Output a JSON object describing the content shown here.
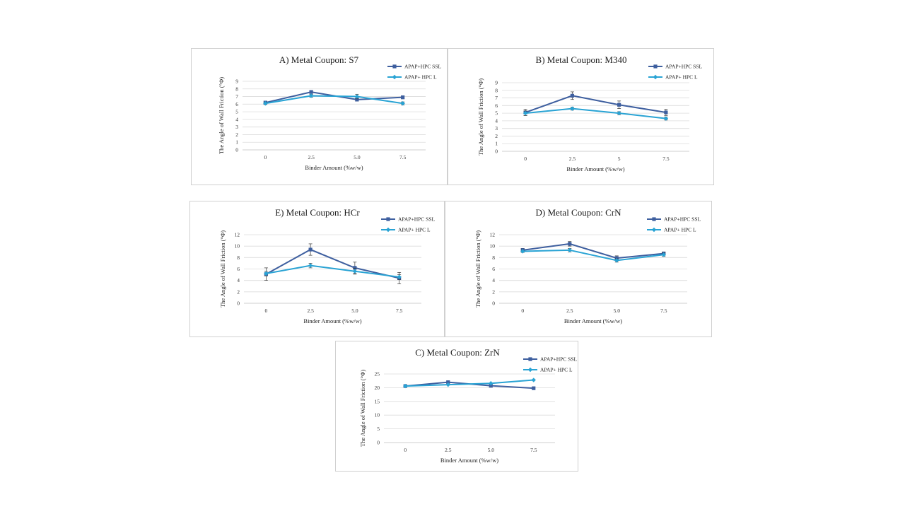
{
  "legend_labels": [
    "APAP+HPC SSL",
    "APAP+ HPC L"
  ],
  "series_colors": [
    "#3e5f9f",
    "#29a3d4"
  ],
  "chart_data": [
    {
      "type": "line",
      "title": "A) Metal Coupon:  S7",
      "xlabel": "Binder Amount (%w/w)",
      "ylabel": "The Angle of Wall Friction (°Φ)",
      "categories": [
        "0",
        "2.5",
        "5.0",
        "7.5"
      ],
      "ylim": [
        0,
        9
      ],
      "yticks": [
        "0",
        "1",
        "2",
        "3",
        "4",
        "5",
        "6",
        "7",
        "8",
        "9"
      ],
      "grid": true,
      "legend_position": "top-right",
      "series": [
        {
          "name": "APAP+HPC SSL",
          "values": [
            6.2,
            7.6,
            6.6,
            6.9
          ],
          "errors": [
            0.2,
            0.2,
            0.2,
            0.2
          ]
        },
        {
          "name": "APAP+ HPC L",
          "values": [
            6.1,
            7.1,
            7.0,
            6.1
          ],
          "errors": [
            0.15,
            0.2,
            0.3,
            0.2
          ]
        }
      ]
    },
    {
      "type": "line",
      "title": "B) Metal Coupon:  M340",
      "xlabel": "Binder Amount (%w/w)",
      "ylabel": "The Angle of Wall Friction (°Φ)",
      "categories": [
        "0",
        "2.5",
        "5",
        "7.5"
      ],
      "ylim": [
        0,
        9
      ],
      "yticks": [
        "0",
        "1",
        "2",
        "3",
        "4",
        "5",
        "6",
        "7",
        "8",
        "9"
      ],
      "grid": true,
      "legend_position": "top-right",
      "series": [
        {
          "name": "APAP+HPC SSL",
          "values": [
            5.1,
            7.3,
            6.1,
            5.1
          ],
          "errors": [
            0.4,
            0.5,
            0.5,
            0.4
          ]
        },
        {
          "name": "APAP+ HPC L",
          "values": [
            5.0,
            5.6,
            5.0,
            4.3
          ],
          "errors": [
            0.3,
            0.2,
            0.2,
            0.2
          ]
        }
      ]
    },
    {
      "type": "line",
      "title": "E) Metal Coupon:  HCr",
      "xlabel": "Binder Amount (%w/w)",
      "ylabel": "The Angle of Wall Friction (°Φ)",
      "categories": [
        "0",
        "2.5",
        "5.0",
        "7.5"
      ],
      "ylim": [
        0,
        12
      ],
      "yticks": [
        "0",
        "2",
        "4",
        "6",
        "8",
        "10",
        "12"
      ],
      "grid": true,
      "legend_position": "top-right",
      "series": [
        {
          "name": "APAP+HPC SSL",
          "values": [
            5.1,
            9.4,
            6.2,
            4.4
          ],
          "errors": [
            1.1,
            1.0,
            1.0,
            1.0
          ]
        },
        {
          "name": "APAP+ HPC L",
          "values": [
            5.2,
            6.6,
            5.6,
            4.6
          ],
          "errors": [
            0.4,
            0.4,
            0.5,
            0.4
          ]
        }
      ]
    },
    {
      "type": "line",
      "title": "D) Metal Coupon:  CrN",
      "xlabel": "Binder Amount (%w/w)",
      "ylabel": "The Angle of Wall Friction (°Φ)",
      "categories": [
        "0",
        "2.5",
        "5.0",
        "7.5"
      ],
      "ylim": [
        0,
        12
      ],
      "yticks": [
        "0",
        "2",
        "4",
        "6",
        "8",
        "10",
        "12"
      ],
      "grid": true,
      "legend_position": "top-right",
      "series": [
        {
          "name": "APAP+HPC SSL",
          "values": [
            9.3,
            10.4,
            7.9,
            8.7
          ],
          "errors": [
            0.3,
            0.4,
            0.4,
            0.3
          ]
        },
        {
          "name": "APAP+ HPC L",
          "values": [
            9.1,
            9.3,
            7.5,
            8.5
          ],
          "errors": [
            0.2,
            0.3,
            0.3,
            0.3
          ]
        }
      ]
    },
    {
      "type": "line",
      "title": "C) Metal Coupon:  ZrN",
      "xlabel": "Binder Amount (%w/w)",
      "ylabel": "The Angle of Wall Friction (°Φ)",
      "categories": [
        "0",
        "2.5",
        "5.0",
        "7.5"
      ],
      "ylim": [
        0,
        25
      ],
      "yticks": [
        "0",
        "5",
        "10",
        "15",
        "20",
        "25"
      ],
      "grid": true,
      "legend_position": "top-right",
      "series": [
        {
          "name": "APAP+HPC SSL",
          "values": [
            20.6,
            22.0,
            20.7,
            19.8
          ],
          "errors": [
            0,
            0,
            0,
            0
          ]
        },
        {
          "name": "APAP+ HPC L",
          "values": [
            20.6,
            21.1,
            21.6,
            22.8
          ],
          "errors": [
            0,
            0,
            0,
            0
          ]
        }
      ]
    }
  ]
}
